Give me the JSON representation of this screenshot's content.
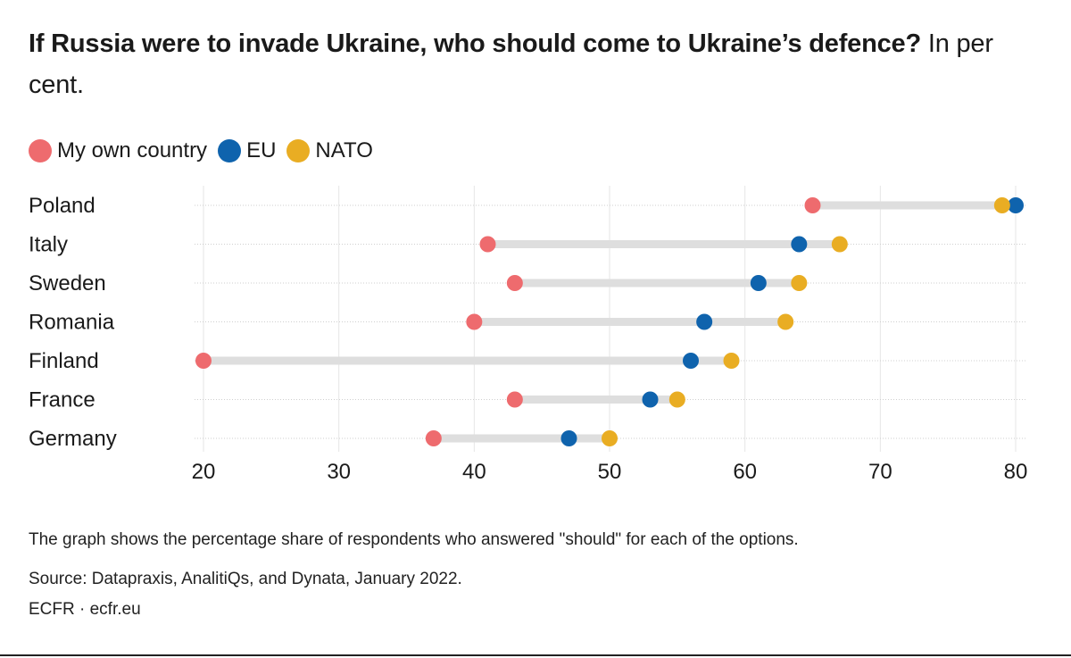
{
  "title": {
    "bold": "If Russia were to invade Ukraine, who should come to Ukraine’s defence?",
    "light": "In per cent."
  },
  "colors": {
    "own": "#ee6b6e",
    "eu": "#0f63ad",
    "nato": "#e9ad23",
    "range": "#dedede",
    "grid": "#e6e6e6"
  },
  "chart_data": {
    "type": "dot-range",
    "title": "If Russia were to invade Ukraine, who should come to Ukraine’s defence? In per cent.",
    "categories": [
      "Poland",
      "Italy",
      "Sweden",
      "Romania",
      "Finland",
      "France",
      "Germany"
    ],
    "series": [
      {
        "name": "My own country",
        "key": "own",
        "values": [
          65,
          41,
          43,
          40,
          20,
          43,
          37
        ]
      },
      {
        "name": "EU",
        "key": "eu",
        "values": [
          80,
          64,
          61,
          57,
          56,
          53,
          47
        ]
      },
      {
        "name": "NATO",
        "key": "nato",
        "values": [
          79,
          67,
          64,
          63,
          59,
          55,
          50
        ]
      }
    ],
    "xlim": [
      20,
      80
    ],
    "xticks": [
      "20",
      "30",
      "40",
      "50",
      "60",
      "70",
      "80"
    ],
    "xlabel": "",
    "ylabel": "",
    "grid": true,
    "legend": "top-left"
  },
  "footnotes": {
    "note": "The graph shows the percentage share of respondents who answered \"should\" for each of the options.",
    "source": "Source: Datapraxis, AnalitiQs, and Dynata, January 2022.",
    "credit": "ECFR · ecfr.eu"
  }
}
